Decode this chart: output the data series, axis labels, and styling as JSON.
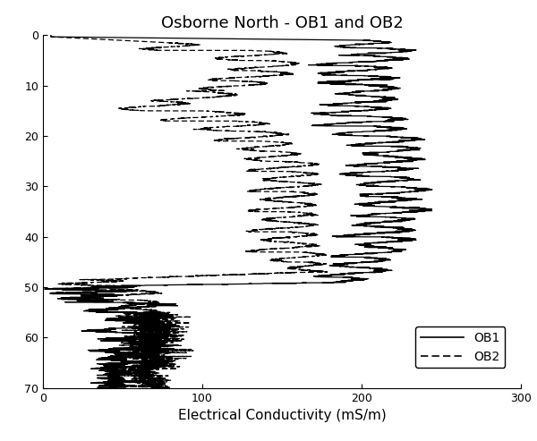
{
  "title": "Osborne North - OB1 and OB2",
  "xlabel": "Electrical Conductivity (mS/m)",
  "xlim": [
    0,
    300
  ],
  "ylim": [
    70,
    0
  ],
  "yticks": [
    0,
    10,
    20,
    30,
    40,
    50,
    60,
    70
  ],
  "xticks": [
    0,
    100,
    200,
    300
  ],
  "figsize": [
    6.0,
    4.93
  ],
  "dpi": 100,
  "background_color": "#ffffff",
  "line_color": "#000000",
  "title_fontsize": 13,
  "axis_fontsize": 11
}
